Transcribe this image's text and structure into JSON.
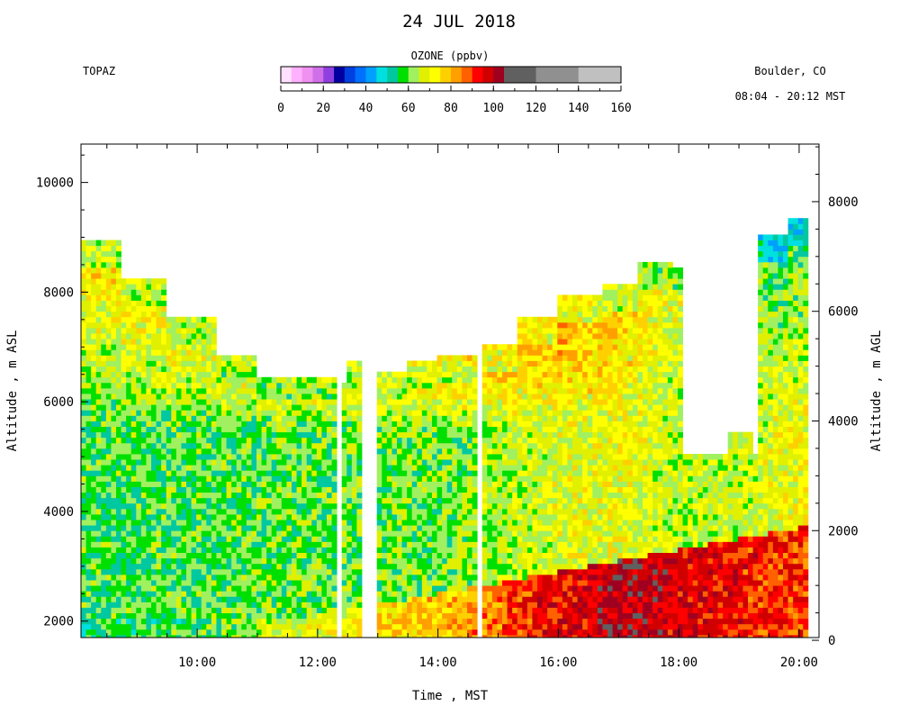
{
  "chart_data": {
    "type": "heatmap",
    "title": "24 JUL 2018",
    "instrument": "TOPAZ",
    "location": "Boulder, CO",
    "time_range": "08:04 - 20:12 MST",
    "colorbar": {
      "label": "OZONE (ppbv)",
      "ticks": [
        "0",
        "20",
        "40",
        "60",
        "80",
        "100",
        "120",
        "140",
        "160"
      ],
      "range": [
        0,
        160
      ],
      "stops": [
        {
          "from": 0,
          "to": 5,
          "color": "#ffe0ff"
        },
        {
          "from": 5,
          "to": 10,
          "color": "#ffb0ff"
        },
        {
          "from": 10,
          "to": 15,
          "color": "#f090f0"
        },
        {
          "from": 15,
          "to": 20,
          "color": "#d070e8"
        },
        {
          "from": 20,
          "to": 25,
          "color": "#9040e0"
        },
        {
          "from": 25,
          "to": 30,
          "color": "#0000a0"
        },
        {
          "from": 30,
          "to": 35,
          "color": "#0040e0"
        },
        {
          "from": 35,
          "to": 40,
          "color": "#0070ff"
        },
        {
          "from": 40,
          "to": 45,
          "color": "#00a0ff"
        },
        {
          "from": 45,
          "to": 50,
          "color": "#00e0e0"
        },
        {
          "from": 50,
          "to": 55,
          "color": "#00c8a0"
        },
        {
          "from": 55,
          "to": 60,
          "color": "#00e000"
        },
        {
          "from": 60,
          "to": 65,
          "color": "#a0f060"
        },
        {
          "from": 65,
          "to": 70,
          "color": "#e0f000"
        },
        {
          "from": 70,
          "to": 75,
          "color": "#ffff00"
        },
        {
          "from": 75,
          "to": 80,
          "color": "#ffd000"
        },
        {
          "from": 80,
          "to": 85,
          "color": "#ffa000"
        },
        {
          "from": 85,
          "to": 90,
          "color": "#ff6000"
        },
        {
          "from": 90,
          "to": 95,
          "color": "#ff0000"
        },
        {
          "from": 95,
          "to": 100,
          "color": "#d00000"
        },
        {
          "from": 100,
          "to": 105,
          "color": "#a00020"
        },
        {
          "from": 105,
          "to": 120,
          "color": "#606060"
        },
        {
          "from": 120,
          "to": 140,
          "color": "#909090"
        },
        {
          "from": 140,
          "to": 160,
          "color": "#c0c0c0"
        }
      ]
    },
    "xlabel": "Time , MST",
    "ylabel_left": "Altitude , m ASL",
    "ylabel_right": "Altitude , m AGL",
    "x_ticks": [
      "10:00",
      "12:00",
      "14:00",
      "16:00",
      "18:00",
      "20:00"
    ],
    "y_ticks_left": [
      "2000",
      "4000",
      "6000",
      "8000",
      "10000"
    ],
    "y_ticks_right": [
      "0",
      "2000",
      "4000",
      "6000",
      "8000"
    ],
    "xlim_hours": [
      8.07,
      20.33
    ],
    "ylim_left_m": [
      1700,
      10700
    ],
    "ground_altitude_m": 1650,
    "columns": [
      {
        "t": 8.07,
        "top": 8950
      },
      {
        "t": 8.7,
        "top": 8200
      },
      {
        "t": 9.5,
        "top": 7500
      },
      {
        "t": 10.3,
        "top": 6800
      },
      {
        "t": 11.0,
        "top": 6450
      },
      {
        "t": 11.8,
        "top": 6400
      },
      {
        "t": 12.3,
        "top": 6300
      },
      {
        "t": 12.5,
        "top": 6700
      },
      {
        "t": 13.0,
        "top": 6500
      },
      {
        "t": 13.5,
        "top": 6700
      },
      {
        "t": 14.0,
        "top": 6800
      },
      {
        "t": 14.7,
        "top": 7000
      },
      {
        "t": 15.3,
        "top": 7500
      },
      {
        "t": 16.0,
        "top": 7900
      },
      {
        "t": 16.7,
        "top": 8100
      },
      {
        "t": 17.3,
        "top": 8500
      },
      {
        "t": 17.9,
        "top": 8400
      },
      {
        "t": 18.1,
        "top": 5000
      },
      {
        "t": 18.8,
        "top": 5400
      },
      {
        "t": 19.2,
        "top": 5000
      },
      {
        "t": 19.3,
        "top": 9000
      },
      {
        "t": 19.8,
        "top": 9300
      },
      {
        "t": 20.17,
        "top": 9200
      }
    ],
    "gaps_hours": [
      [
        12.3,
        12.42
      ],
      [
        12.75,
        13.0
      ],
      [
        14.68,
        14.73
      ]
    ],
    "ozone_layers": [
      {
        "t": 8.07,
        "boundary_layer": 55,
        "free_trop": 58,
        "upper": 78
      },
      {
        "t": 10.0,
        "boundary_layer": 58,
        "free_trop": 58,
        "upper": 75
      },
      {
        "t": 12.0,
        "boundary_layer": 70,
        "free_trop": 60,
        "upper": 75
      },
      {
        "t": 14.0,
        "boundary_layer": 78,
        "free_trop": 60,
        "upper": 82
      },
      {
        "t": 16.0,
        "boundary_layer": 95,
        "free_trop": 68,
        "upper": 84
      },
      {
        "t": 17.0,
        "boundary_layer": 100,
        "free_trop": 70,
        "upper": 78
      },
      {
        "t": 18.0,
        "boundary_layer": 97,
        "free_trop": 65,
        "upper": 70
      },
      {
        "t": 19.0,
        "boundary_layer": 93,
        "free_trop": 65,
        "upper": 60
      },
      {
        "t": 20.17,
        "boundary_layer": 90,
        "free_trop": 72,
        "upper": 55
      }
    ]
  }
}
